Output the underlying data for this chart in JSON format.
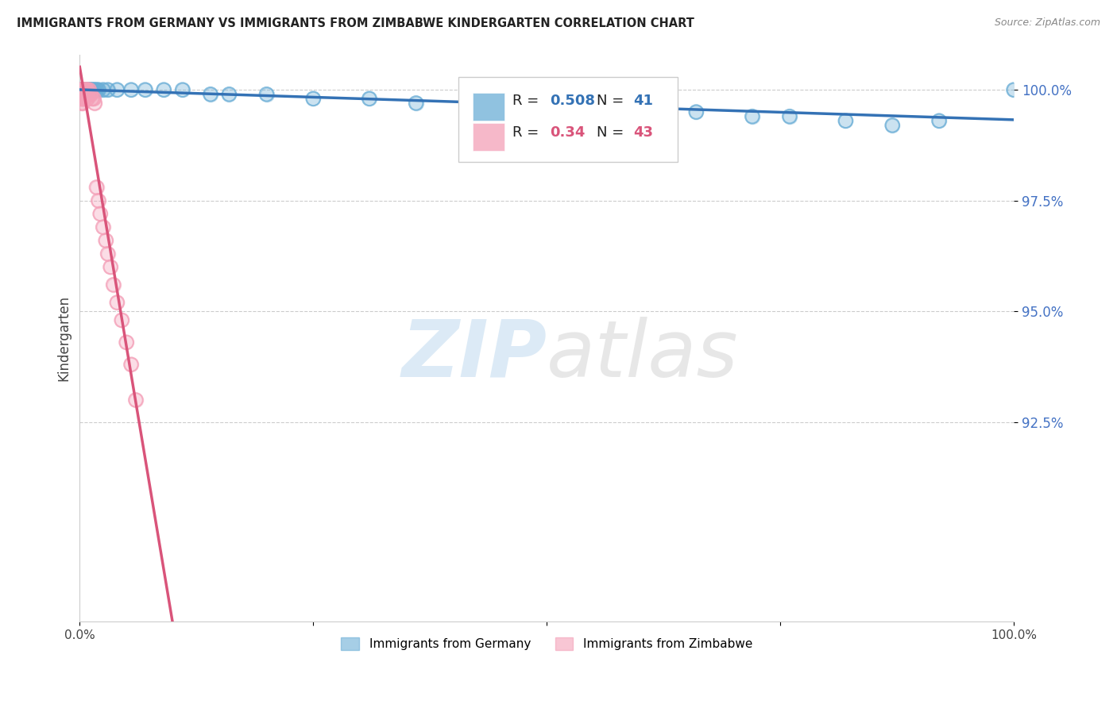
{
  "title": "IMMIGRANTS FROM GERMANY VS IMMIGRANTS FROM ZIMBABWE KINDERGARTEN CORRELATION CHART",
  "source": "Source: ZipAtlas.com",
  "ylabel": "Kindergarten",
  "ytick_values": [
    0.925,
    0.95,
    0.975,
    1.0
  ],
  "ytick_labels": [
    "92.5%",
    "95.0%",
    "97.5%",
    "100.0%"
  ],
  "xlim": [
    0.0,
    1.0
  ],
  "ylim": [
    0.88,
    1.008
  ],
  "legend_germany": "Immigrants from Germany",
  "legend_zimbabwe": "Immigrants from Zimbabwe",
  "R_germany": 0.508,
  "N_germany": 41,
  "R_zimbabwe": 0.34,
  "N_zimbabwe": 43,
  "color_germany": "#6baed6",
  "color_zimbabwe": "#f4a0b8",
  "trendline_germany_color": "#3472b5",
  "trendline_zimbabwe_color": "#d9547a",
  "background_color": "#ffffff",
  "germany_x": [
    0.001,
    0.002,
    0.003,
    0.004,
    0.005,
    0.006,
    0.007,
    0.008,
    0.009,
    0.01,
    0.011,
    0.012,
    0.013,
    0.015,
    0.016,
    0.018,
    0.02,
    0.025,
    0.03,
    0.04,
    0.055,
    0.07,
    0.09,
    0.11,
    0.14,
    0.16,
    0.2,
    0.25,
    0.31,
    0.36,
    0.42,
    0.49,
    0.55,
    0.61,
    0.66,
    0.72,
    0.76,
    0.82,
    0.87,
    0.92,
    1.0
  ],
  "germany_y": [
    1.0,
    1.0,
    1.0,
    1.0,
    1.0,
    1.0,
    1.0,
    1.0,
    1.0,
    1.0,
    1.0,
    1.0,
    1.0,
    1.0,
    1.0,
    1.0,
    1.0,
    1.0,
    1.0,
    1.0,
    1.0,
    1.0,
    1.0,
    1.0,
    0.999,
    0.999,
    0.999,
    0.998,
    0.998,
    0.997,
    0.997,
    0.996,
    0.995,
    0.996,
    0.995,
    0.994,
    0.994,
    0.993,
    0.992,
    0.993,
    1.0
  ],
  "zimbabwe_x": [
    0.001,
    0.001,
    0.001,
    0.002,
    0.002,
    0.002,
    0.002,
    0.003,
    0.003,
    0.003,
    0.003,
    0.004,
    0.004,
    0.004,
    0.005,
    0.005,
    0.005,
    0.006,
    0.006,
    0.007,
    0.007,
    0.008,
    0.008,
    0.009,
    0.01,
    0.011,
    0.012,
    0.013,
    0.015,
    0.016,
    0.018,
    0.02,
    0.022,
    0.025,
    0.028,
    0.03,
    0.033,
    0.036,
    0.04,
    0.045,
    0.05,
    0.055,
    0.06
  ],
  "zimbabwe_y": [
    1.0,
    0.999,
    0.998,
    1.0,
    0.999,
    0.998,
    0.997,
    1.0,
    0.999,
    0.998,
    0.997,
    1.0,
    0.999,
    0.998,
    1.0,
    0.999,
    0.998,
    1.0,
    0.999,
    1.0,
    0.999,
    1.0,
    0.998,
    0.999,
    1.0,
    0.999,
    0.999,
    0.998,
    0.998,
    0.997,
    0.978,
    0.975,
    0.972,
    0.969,
    0.966,
    0.963,
    0.96,
    0.956,
    0.952,
    0.948,
    0.943,
    0.938,
    0.93
  ]
}
